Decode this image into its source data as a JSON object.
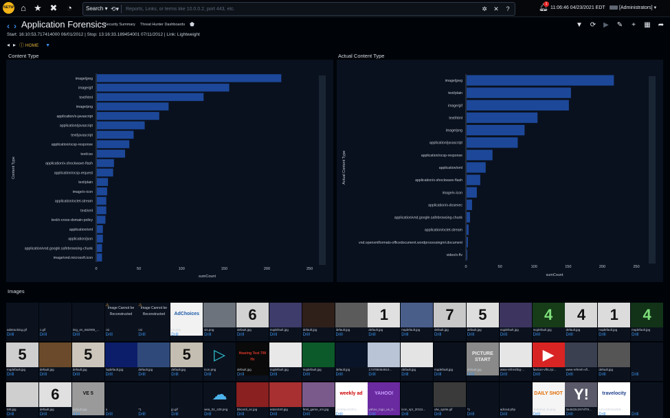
{
  "topbar": {
    "search_mode": "Search",
    "search_placeholder": "Reports, Links, or terms like 10.0.0.2, port 443, etc.",
    "notification_count": "1",
    "clock": "11:06:46 04/23/2021 EDT",
    "user": "[Administrators]"
  },
  "header": {
    "title": "Application Forensics",
    "breadcrumbs": [
      "Security Summary",
      "Threat Hunter Dashboards"
    ],
    "info": "Start: 16:10:53.717414000 06/01/2012 | Stop: 13:16:33.189454001 07/11/2012 | Link: Lightweight",
    "home_label": "HOME"
  },
  "colors": {
    "bar": "#1d4899",
    "accent": "#3a8fe6",
    "background": "#000409",
    "panel": "#0a111e"
  },
  "chart_data": [
    {
      "type": "bar",
      "orientation": "horizontal",
      "title": "Content Type",
      "xlabel": "sumCount",
      "ylabel": "Content Type",
      "xlim": [
        0,
        260
      ],
      "xticks": [
        "0",
        "50",
        "100",
        "150",
        "200",
        "250"
      ],
      "categories": [
        "image/jpeg",
        "image/gif",
        "text/html",
        "image/png",
        "application/x-javascript",
        "application/javascript",
        "text/javascript",
        "application/ocsp-response",
        "text/css",
        "application/x-shockwave-flash",
        "application/ocsp-request",
        "text/plain",
        "image/x-icon",
        "application/octet-stream",
        "text/xml",
        "text/x-cross-domain-policy",
        "application/xml",
        "application/json",
        "application/vnd.google.safebrowsing-chunk",
        "image/vnd.microsoft.icon"
      ],
      "values": [
        216,
        155,
        125,
        84,
        73,
        56,
        43,
        38,
        33,
        20,
        19,
        13,
        12,
        11,
        11,
        10,
        7,
        7,
        6,
        6
      ]
    },
    {
      "type": "bar",
      "orientation": "horizontal",
      "title": "Actual Content Type",
      "xlabel": "sumCount",
      "ylabel": "Actual Content Type",
      "xlim": [
        0,
        260
      ],
      "xticks": [
        "0",
        "50",
        "100",
        "150",
        "200",
        "250"
      ],
      "categories": [
        "image/jpeg",
        "text/plain",
        "image/gif",
        "text/html",
        "image/png",
        "application/javascript",
        "application/ocsp-response",
        "application/xml",
        "application/x-shockwave-flash",
        "image/x-icon",
        "application/x-dosexec",
        "application/vnd.google.safebrowsing-chunk",
        "application/octet-stream",
        "vnd.openxmlformats-officedocument.wordprocessingml.document",
        "video/x-flv"
      ],
      "values": [
        216,
        153,
        150,
        104,
        85,
        75,
        38,
        28,
        20,
        15,
        8,
        5,
        3,
        2,
        1
      ]
    }
  ],
  "images": {
    "title": "Images",
    "drill_label": "Drill",
    "rows": [
      [
        {
          "file": "adstracking.gif",
          "thumb": "",
          "bg": "#0b121e"
        },
        {
          "file": "c.gif",
          "thumb": "",
          "bg": "#0b121e"
        },
        {
          "file": "img_en_662009_...",
          "thumb": "",
          "bg": "#0b121e"
        },
        {
          "file": "csi",
          "thumb": "Image Cannot be Reconstructed",
          "bg": "#0b121e",
          "warn": "yes"
        },
        {
          "file": "csi",
          "thumb": "Image Cannot be Reconstructed",
          "bg": "#0b121e",
          "warn": "yes"
        },
        {
          "file": "en.png",
          "thumb": "AdChoices",
          "bg": "#f2f2f2",
          "fg": "#1b5aa8"
        },
        {
          "file": "sis.png",
          "thumb": "",
          "bg": "#6d737c"
        },
        {
          "file": "default.jpg",
          "thumb": "6",
          "bg": "#d2d2d2",
          "fg": "#111"
        },
        {
          "file": "mqdefault.jpg",
          "thumb": "",
          "bg": "#3e3c6a"
        },
        {
          "file": "default.jpg",
          "thumb": "",
          "bg": "#30201a"
        },
        {
          "file": "default.jpg",
          "thumb": "",
          "bg": "#5b5b5b"
        },
        {
          "file": "default.jpg",
          "thumb": "1",
          "bg": "#e0e0e0",
          "fg": "#111"
        },
        {
          "file": "mqdefault.jpg",
          "thumb": "",
          "bg": "#4a5e8a"
        },
        {
          "file": "default.jpg",
          "thumb": "7",
          "bg": "#c8c8c8",
          "fg": "#111"
        },
        {
          "file": "default.jpg",
          "thumb": "5",
          "bg": "#dedede",
          "fg": "#111"
        },
        {
          "file": "mqdefault.jpg",
          "thumb": "",
          "bg": "#3d3560"
        },
        {
          "file": "mqdefault.jpg",
          "thumb": "4",
          "bg": "#163c18",
          "fg": "#7ee07a"
        },
        {
          "file": "default.jpg",
          "thumb": "4",
          "bg": "#d8d8d8",
          "fg": "#111"
        },
        {
          "file": "mqdefault.jpg",
          "thumb": "1",
          "bg": "#dcdcdc",
          "fg": "#111"
        },
        {
          "file": "mqdefault.jpg",
          "thumb": "4",
          "bg": "#123318",
          "fg": "#7ee07a"
        }
      ],
      [
        {
          "file": "mqdefault.jpg",
          "thumb": "5",
          "bg": "#cfcfcf",
          "fg": "#111"
        },
        {
          "file": "default.jpg",
          "thumb": "",
          "bg": "#6a4a2a"
        },
        {
          "file": "default.jpg",
          "thumb": "5",
          "bg": "#cbc5bb",
          "fg": "#111"
        },
        {
          "file": "hqdefault.jpg",
          "thumb": "",
          "bg": "#0c1e6a"
        },
        {
          "file": "default.jpg",
          "thumb": "",
          "bg": "#2f4a7a"
        },
        {
          "file": "default.jpg",
          "thumb": "5",
          "bg": "#c4beb2",
          "fg": "#111"
        },
        {
          "file": "icon.png",
          "thumb": "▷",
          "bg": "#0b121e",
          "fg": "#2fc0d0"
        },
        {
          "file": "default.jpg",
          "thumb": "Hearing Test 700 Hz",
          "bg": "#0a0a0a",
          "fg": "#e23a2a"
        },
        {
          "file": "mqdefault.jpg",
          "thumb": "",
          "bg": "#e8e8e8"
        },
        {
          "file": "mqdefault.jpg",
          "thumb": "",
          "bg": "#0c5a2a"
        },
        {
          "file": "default.jpg",
          "thumb": "",
          "bg": "#0a1428"
        },
        {
          "file": "174788454910...",
          "thumb": "",
          "bg": "#b9c4d6"
        },
        {
          "file": "default.jpg",
          "thumb": "",
          "bg": "#e4e4e4"
        },
        {
          "file": "mqdefault.jpg",
          "thumb": "",
          "bg": "#0b121e"
        },
        {
          "file": "default.jpg",
          "thumb": "PICTURE START",
          "bg": "#8a8a8a",
          "fg": "#eeeeee"
        },
        {
          "file": "www-refreshbg-...",
          "thumb": "",
          "bg": "#e6e6e6"
        },
        {
          "file": "favicon-vflrLzyi...",
          "thumb": "▶",
          "bg": "#d92424",
          "fg": "#ffffff"
        },
        {
          "file": "www-refresh-vfl...",
          "thumb": "",
          "bg": "#3a4050"
        },
        {
          "file": "default.jpg",
          "thumb": "",
          "bg": "#555555"
        },
        {
          "file": "",
          "thumb": "",
          "bg": "#0b121e"
        }
      ],
      [
        {
          "file": "M0.jpg",
          "thumb": "",
          "bg": "#cfcfcf"
        },
        {
          "file": "default.jpg",
          "thumb": "6",
          "bg": "#e0e0e0",
          "fg": "#111"
        },
        {
          "file": "default.jpg",
          "thumb": "VE 5",
          "bg": "#9a9a9a",
          "fg": "#111"
        },
        {
          "file": "a",
          "thumb": "",
          "bg": "#0b121e"
        },
        {
          "file": "*1",
          "thumb": "",
          "bg": "#0b121e"
        },
        {
          "file": "jp.gif",
          "thumb": "",
          "bg": "#0b121e"
        },
        {
          "file": "wea_01_s28.png",
          "thumb": "☁",
          "bg": "#0b121e",
          "fg": "#4db2ea"
        },
        {
          "file": "bbcardi_ac.jpg",
          "thumb": "",
          "bg": "#8a2020"
        },
        {
          "file": "eaton340.jpg",
          "thumb": "",
          "bg": "#a83030"
        },
        {
          "file": "fmsl_game_sm.jpg",
          "thumb": "",
          "bg": "#7a5a8a"
        },
        {
          "file": "52x59px322for...",
          "thumb": "weekly ad",
          "bg": "#ffffff",
          "fg": "#cc0000"
        },
        {
          "file": "yahoo_logo_us_0...",
          "thumb": "YAHOO!",
          "bg": "#6a2aa0",
          "fg": "#c8a0ff"
        },
        {
          "file": "icon_spr_20111...",
          "thumb": "",
          "bg": "#0b121e"
        },
        {
          "file": "ulw_sprite.gif",
          "thumb": "",
          "bg": "#3a3a3a"
        },
        {
          "file": "*1",
          "thumb": "",
          "bg": "#0b121e"
        },
        {
          "file": "adcout.php",
          "thumb": "",
          "bg": "#0b121e"
        },
        {
          "file": "dailyshot_fs.png",
          "thumb": "DAILY SHOT",
          "bg": "#f5f5f5",
          "fg": "#e06a00"
        },
        {
          "file": "3a4633c2974f79...",
          "thumb": "Y!",
          "bg": "#5a5a6a",
          "fg": "#ffffff"
        },
        {
          "file": "120x45fcbta0b8...",
          "thumb": "travelocity",
          "bg": "#ffffff",
          "fg": "#1a3c8a"
        },
        {
          "file": "",
          "thumb": "",
          "bg": "#0b121e"
        }
      ]
    ]
  }
}
